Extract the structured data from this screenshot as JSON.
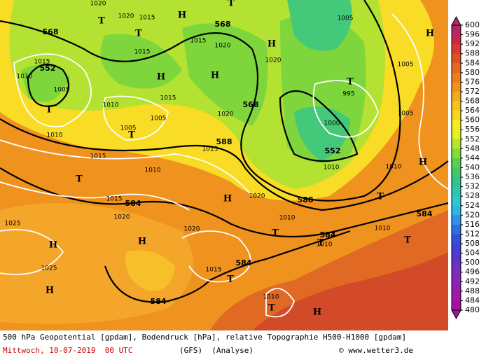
{
  "map": {
    "isohypse_labels": [
      "568",
      "552",
      "568",
      "568",
      "588",
      "552",
      "584",
      "588",
      "584",
      "584",
      "584",
      "584"
    ],
    "pressure_labels": [
      "1020",
      "1020",
      "1015",
      "1015",
      "1015",
      "1020",
      "1015",
      "1010",
      "1005",
      "1010",
      "1015",
      "1020",
      "1005",
      "1005",
      "1010",
      "1015",
      "1015",
      "1010",
      "1020",
      "1005",
      "1005",
      "995",
      "1000",
      "1005",
      "1010",
      "1010",
      "1020",
      "1015",
      "1020",
      "1025",
      "1025",
      "1020",
      "1015",
      "1010",
      "1010",
      "1010",
      "1010"
    ],
    "centers": [
      "T",
      "H",
      "T",
      "T",
      "H",
      "H",
      "H",
      "T",
      "H",
      "T",
      "T",
      "T",
      "H",
      "H",
      "T",
      "H",
      "H",
      "T",
      "T",
      "T",
      "T",
      "H",
      "T",
      "H"
    ]
  },
  "colorbar": {
    "labels": [
      600,
      596,
      592,
      588,
      584,
      580,
      576,
      572,
      568,
      564,
      560,
      556,
      552,
      548,
      544,
      540,
      536,
      532,
      528,
      524,
      520,
      516,
      512,
      508,
      504,
      500,
      496,
      492,
      488,
      484,
      480
    ],
    "colors": [
      "#b02868",
      "#c4284c",
      "#d63a30",
      "#de5222",
      "#e46820",
      "#ea7e1e",
      "#ee941c",
      "#f2aa1e",
      "#f6c01e",
      "#f8d620",
      "#f6ea22",
      "#e2f024",
      "#b6e630",
      "#84da3a",
      "#5cd04e",
      "#42c86c",
      "#34c28c",
      "#30c6ac",
      "#30c6cc",
      "#30b4e0",
      "#3094e6",
      "#306ee0",
      "#3450d8",
      "#4440d0",
      "#5a36c8",
      "#7030c0",
      "#8428b8",
      "#9420b0",
      "#a018a8",
      "#a410a0"
    ]
  },
  "footer": {
    "description": "500 hPa Geopotential [gpdam], Bodendruck [hPa], relative Topographie H500-H1000 [gpdam]",
    "date": "Mittwoch, 10-07-2019  00 UTC",
    "model": "(GFS)  (Analyse)",
    "copyright": "© www.wetter3.de"
  }
}
